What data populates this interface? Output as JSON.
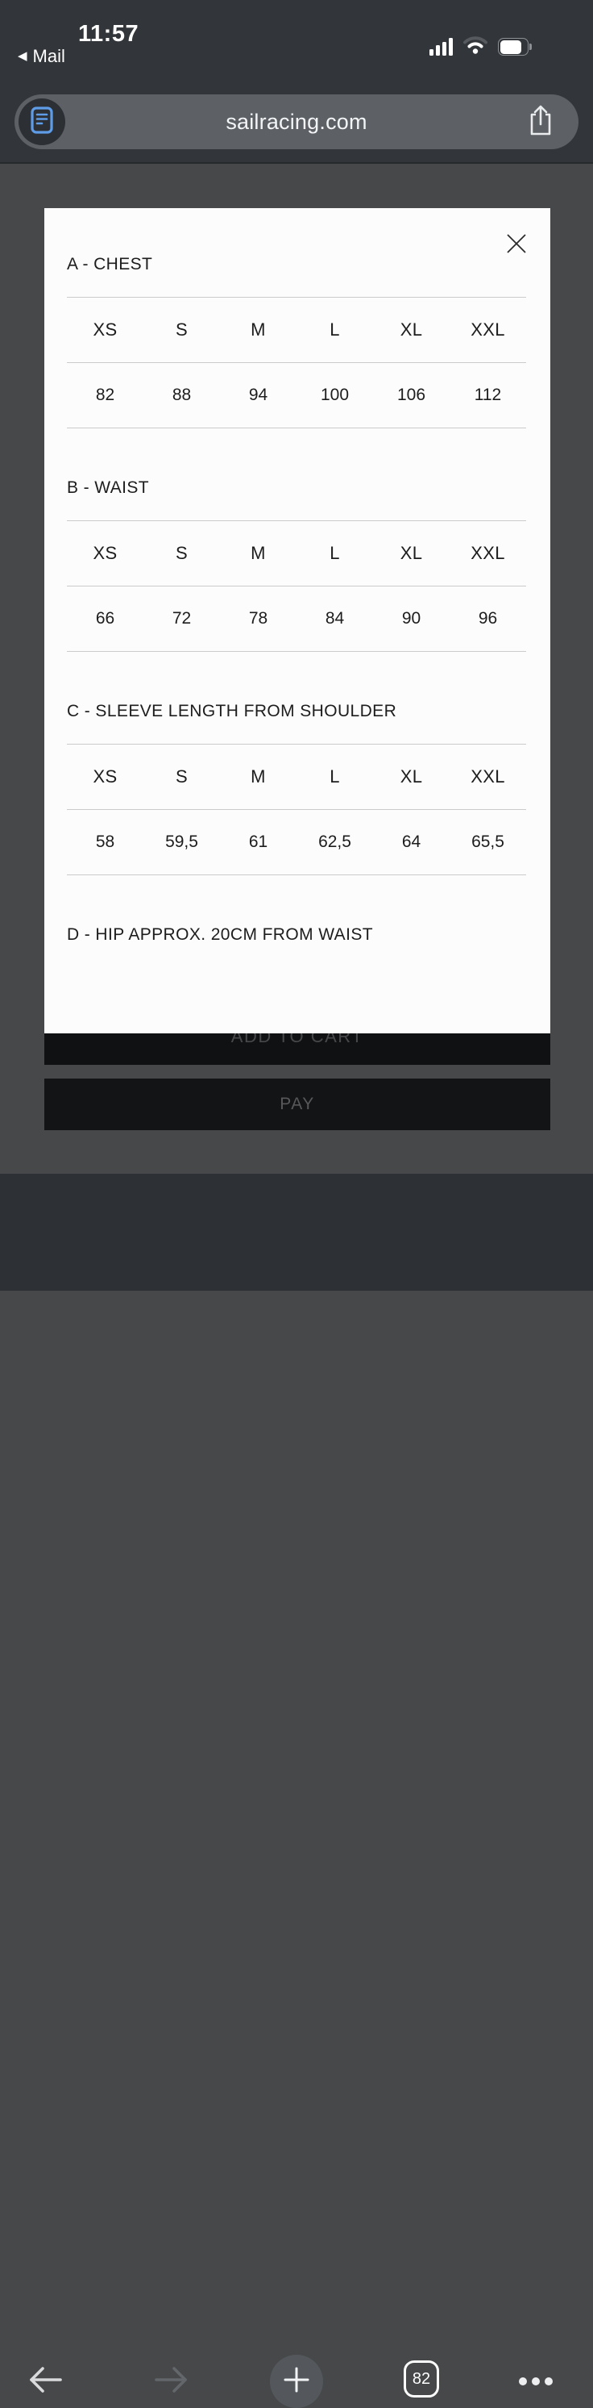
{
  "status_bar": {
    "time": "11:57",
    "back_app_label": "Mail",
    "signal_bars_filled": 4,
    "wifi_strength": "2of3",
    "battery_level_percent": 72
  },
  "browser": {
    "url": "sailracing.com",
    "icons": {
      "reader": "reader-icon",
      "share": "share-icon"
    }
  },
  "modal": {
    "close_icon": "close-x",
    "sections": [
      {
        "title": "A - CHEST",
        "sizes": [
          "XS",
          "S",
          "M",
          "L",
          "XL",
          "XXL"
        ],
        "values": [
          "82",
          "88",
          "94",
          "100",
          "106",
          "112"
        ]
      },
      {
        "title": "B - WAIST",
        "sizes": [
          "XS",
          "S",
          "M",
          "L",
          "XL",
          "XXL"
        ],
        "values": [
          "66",
          "72",
          "78",
          "84",
          "90",
          "96"
        ]
      },
      {
        "title": "C - SLEEVE LENGTH FROM SHOULDER",
        "sizes": [
          "XS",
          "S",
          "M",
          "L",
          "XL",
          "XXL"
        ],
        "values": [
          "58",
          "59,5",
          "61",
          "62,5",
          "64",
          "65,5"
        ]
      },
      {
        "title": "D - HIP APPROX. 20CM FROM WAIST",
        "sizes": [],
        "values": []
      }
    ]
  },
  "page_buttons": {
    "add_to_cart": "ADD TO CART",
    "pay": "PAY"
  },
  "toolbar": {
    "tab_count": "82"
  },
  "colors": {
    "header_bg": "#32363a",
    "backdrop_bg": "#464849",
    "toolbar_bg": "#2d3135",
    "url_pill_bg": "#5d6166",
    "reader_icon_blue": "#5e9ce8",
    "modal_bg": "#fcfcfc",
    "modal_text": "#1d1d1d",
    "divider": "#cbcbcb",
    "dim_button_bg": "#111214",
    "dim_button_text": "#4f5052"
  }
}
